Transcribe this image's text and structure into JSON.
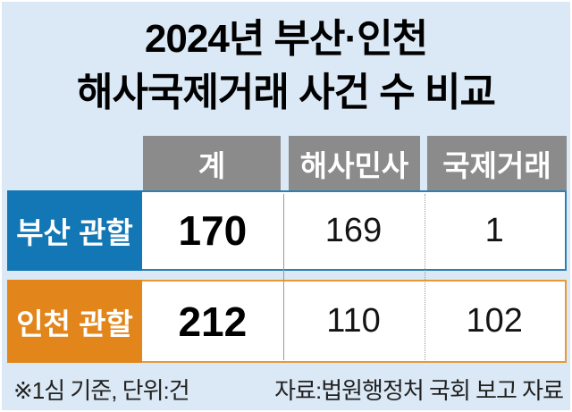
{
  "title": {
    "line1": "2024년 부산·인천",
    "line2": "해사국제거래 사건 수 비교"
  },
  "table": {
    "column_headers": [
      "계",
      "해사민사",
      "국제거래"
    ],
    "rows": [
      {
        "label": "부산 관할",
        "cells": [
          "170",
          "169",
          "1"
        ]
      },
      {
        "label": "인천 관할",
        "cells": [
          "212",
          "110",
          "102"
        ]
      }
    ]
  },
  "footer": {
    "note": "※1심 기준, 단위:건",
    "source": "자료:법원행정처 국회 보고 자료"
  },
  "colors": {
    "background": "#dbe8f5",
    "header_gray": "#8b8b8b",
    "busan_blue": "#1377b5",
    "incheon_orange": "#e2861b",
    "row1_border": "#2d80b4",
    "row2_border": "#e79a33",
    "divider_gray": "#9a9a9a"
  },
  "chart_data": {
    "type": "table",
    "title": "2024년 부산·인천 해사국제거래 사건 수 비교",
    "columns": [
      "계",
      "해사민사",
      "국제거래"
    ],
    "rows": [
      {
        "label": "부산 관할",
        "values": [
          170,
          169,
          1
        ]
      },
      {
        "label": "인천 관할",
        "values": [
          212,
          110,
          102
        ]
      }
    ],
    "footnote": "※1심 기준, 단위:건",
    "source": "자료:법원행정처 국회 보고 자료"
  }
}
